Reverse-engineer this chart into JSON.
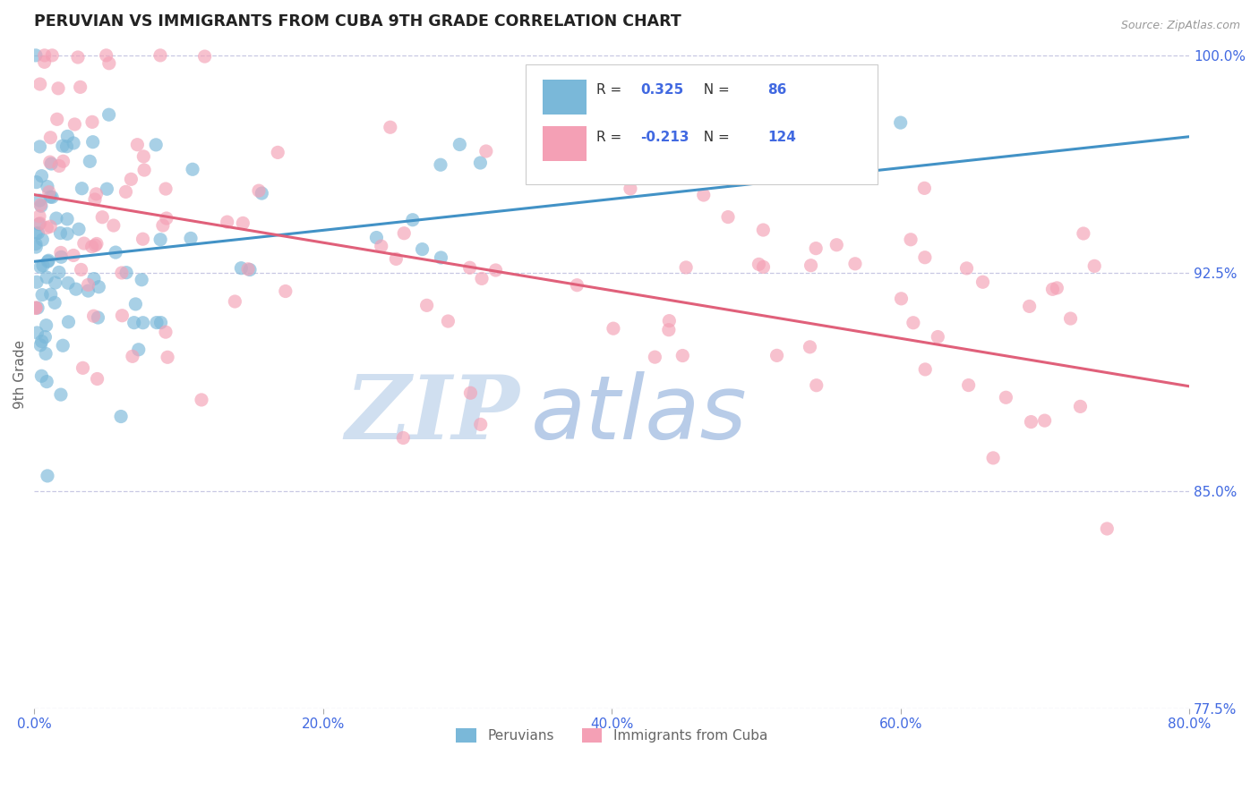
{
  "title": "PERUVIAN VS IMMIGRANTS FROM CUBA 9TH GRADE CORRELATION CHART",
  "source_text": "Source: ZipAtlas.com",
  "ylabel": "9th Grade",
  "legend_label_1": "Peruvians",
  "legend_label_2": "Immigrants from Cuba",
  "r1": 0.325,
  "n1": 86,
  "r2": -0.213,
  "n2": 124,
  "xlim": [
    0.0,
    0.8
  ],
  "ylim": [
    0.775,
    1.005
  ],
  "yticks_right": [
    1.0,
    0.925,
    0.85,
    0.775
  ],
  "ytick_labels_right": [
    "100.0%",
    "92.5%",
    "85.0%",
    "77.5%"
  ],
  "xticks": [
    0.0,
    0.2,
    0.4,
    0.6,
    0.8
  ],
  "xtick_labels": [
    "0.0%",
    "20.0%",
    "40.0%",
    "60.0%",
    "80.0%"
  ],
  "color_blue": "#7ab8d9",
  "color_pink": "#f4a0b5",
  "color_line_blue": "#4292c6",
  "color_line_pink": "#e0607a",
  "color_text_blue": "#4169e1",
  "color_axis_label": "#666666",
  "watermark_zip": "ZIP",
  "watermark_atlas": "atlas",
  "watermark_color_zip": "#d0dff0",
  "watermark_color_atlas": "#b8cce8",
  "blue_line_x0": 0.0,
  "blue_line_y0": 0.929,
  "blue_line_x1": 0.8,
  "blue_line_y1": 0.972,
  "pink_line_x0": 0.0,
  "pink_line_y0": 0.952,
  "pink_line_x1": 0.8,
  "pink_line_y1": 0.886
}
